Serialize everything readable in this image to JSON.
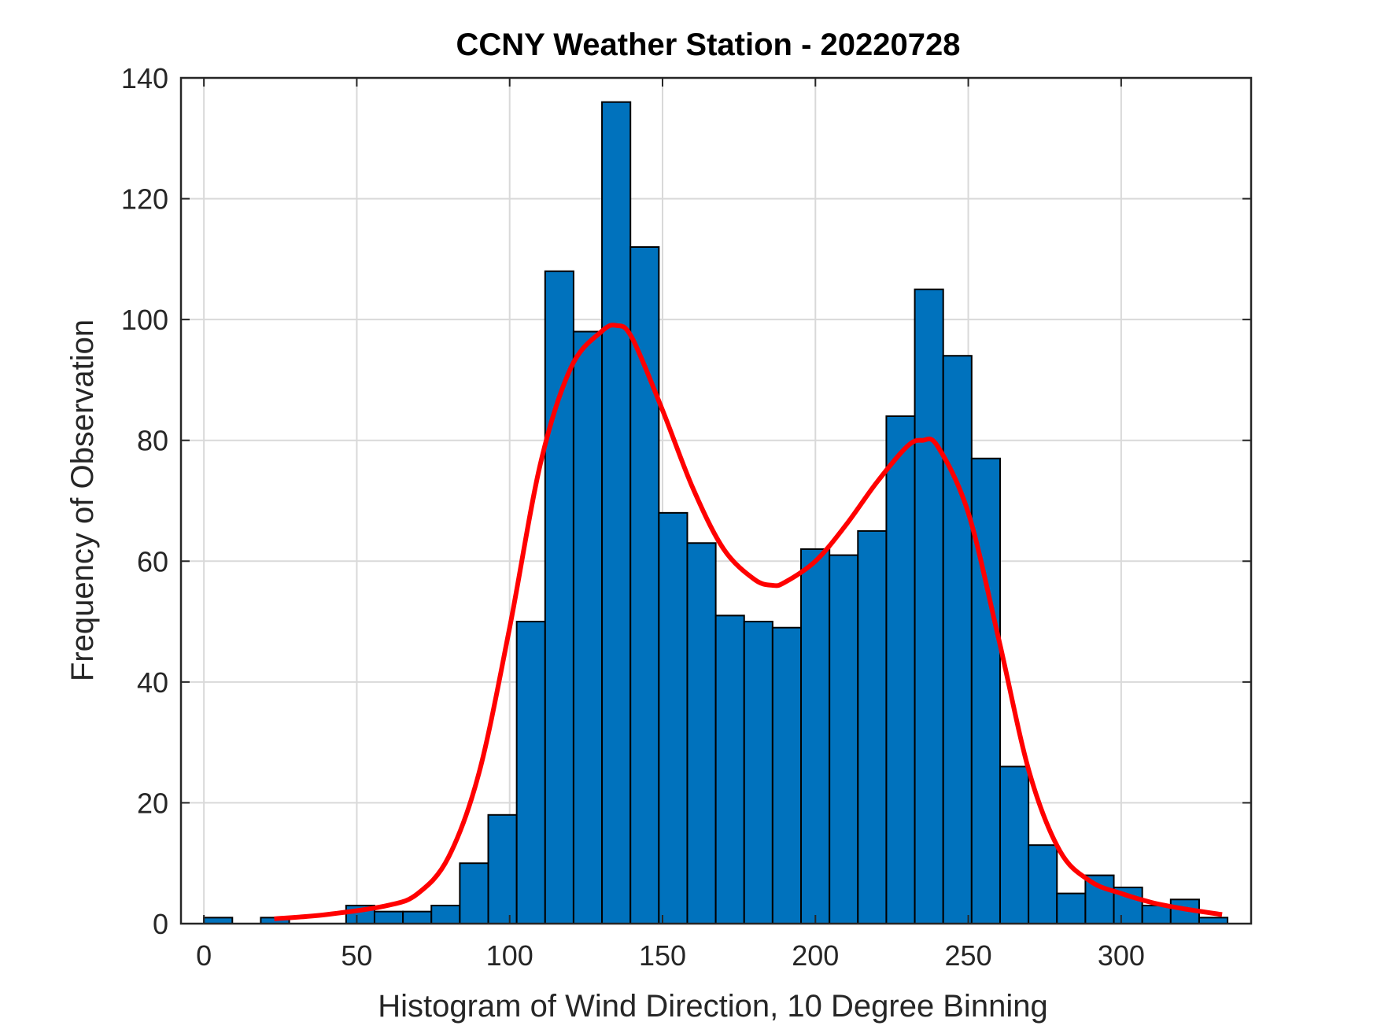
{
  "chart_data": {
    "type": "bar",
    "title": "CCNY Weather Station - 20220728",
    "xlabel": "Histogram of Wind Direction, 10 Degree Binning",
    "ylabel": "Frequency of Observation",
    "xlim": [
      -7.5,
      342.5
    ],
    "ylim": [
      0,
      140
    ],
    "xticks": [
      0,
      50,
      100,
      150,
      200,
      250,
      300
    ],
    "yticks": [
      0,
      20,
      40,
      60,
      80,
      100,
      120,
      140
    ],
    "grid": true,
    "bin_width": 9.3,
    "bins": [
      {
        "left": 0,
        "value": 1
      },
      {
        "left": 18.6,
        "value": 1
      },
      {
        "left": 46.5,
        "value": 3
      },
      {
        "left": 55.8,
        "value": 2
      },
      {
        "left": 65.1,
        "value": 2
      },
      {
        "left": 74.4,
        "value": 3
      },
      {
        "left": 83.7,
        "value": 10
      },
      {
        "left": 93.0,
        "value": 18
      },
      {
        "left": 102.3,
        "value": 50
      },
      {
        "left": 111.6,
        "value": 108
      },
      {
        "left": 120.9,
        "value": 98
      },
      {
        "left": 130.2,
        "value": 136
      },
      {
        "left": 139.5,
        "value": 112
      },
      {
        "left": 148.8,
        "value": 68
      },
      {
        "left": 158.1,
        "value": 63
      },
      {
        "left": 167.4,
        "value": 51
      },
      {
        "left": 176.7,
        "value": 50
      },
      {
        "left": 186.0,
        "value": 49
      },
      {
        "left": 195.3,
        "value": 62
      },
      {
        "left": 204.6,
        "value": 61
      },
      {
        "left": 213.9,
        "value": 65
      },
      {
        "left": 223.2,
        "value": 84
      },
      {
        "left": 232.5,
        "value": 105
      },
      {
        "left": 241.8,
        "value": 94
      },
      {
        "left": 251.1,
        "value": 77
      },
      {
        "left": 260.4,
        "value": 26
      },
      {
        "left": 269.7,
        "value": 13
      },
      {
        "left": 279.0,
        "value": 5
      },
      {
        "left": 288.3,
        "value": 8
      },
      {
        "left": 297.6,
        "value": 6
      },
      {
        "left": 306.9,
        "value": 3
      },
      {
        "left": 316.2,
        "value": 4
      },
      {
        "left": 325.5,
        "value": 1
      }
    ],
    "fit_curve": {
      "x": [
        23,
        40,
        60,
        70,
        80,
        90,
        100,
        110,
        120,
        130,
        135,
        140,
        150,
        160,
        170,
        180,
        186,
        190,
        200,
        210,
        220,
        230,
        235,
        240,
        250,
        260,
        270,
        280,
        290,
        300,
        310,
        320,
        333
      ],
      "y": [
        0.8,
        1.5,
        3,
        5,
        11,
        25,
        49,
        76,
        92,
        98,
        99,
        97,
        85,
        72,
        62,
        57,
        56,
        56.5,
        60,
        66,
        73,
        79,
        80,
        79,
        68,
        47,
        25,
        12,
        7,
        5,
        3.5,
        2.5,
        1.5
      ]
    },
    "colors": {
      "bar_fill": "#0072BD",
      "bar_edge": "#000000",
      "curve": "#FF0000",
      "grid": "#D9D9D9"
    }
  }
}
